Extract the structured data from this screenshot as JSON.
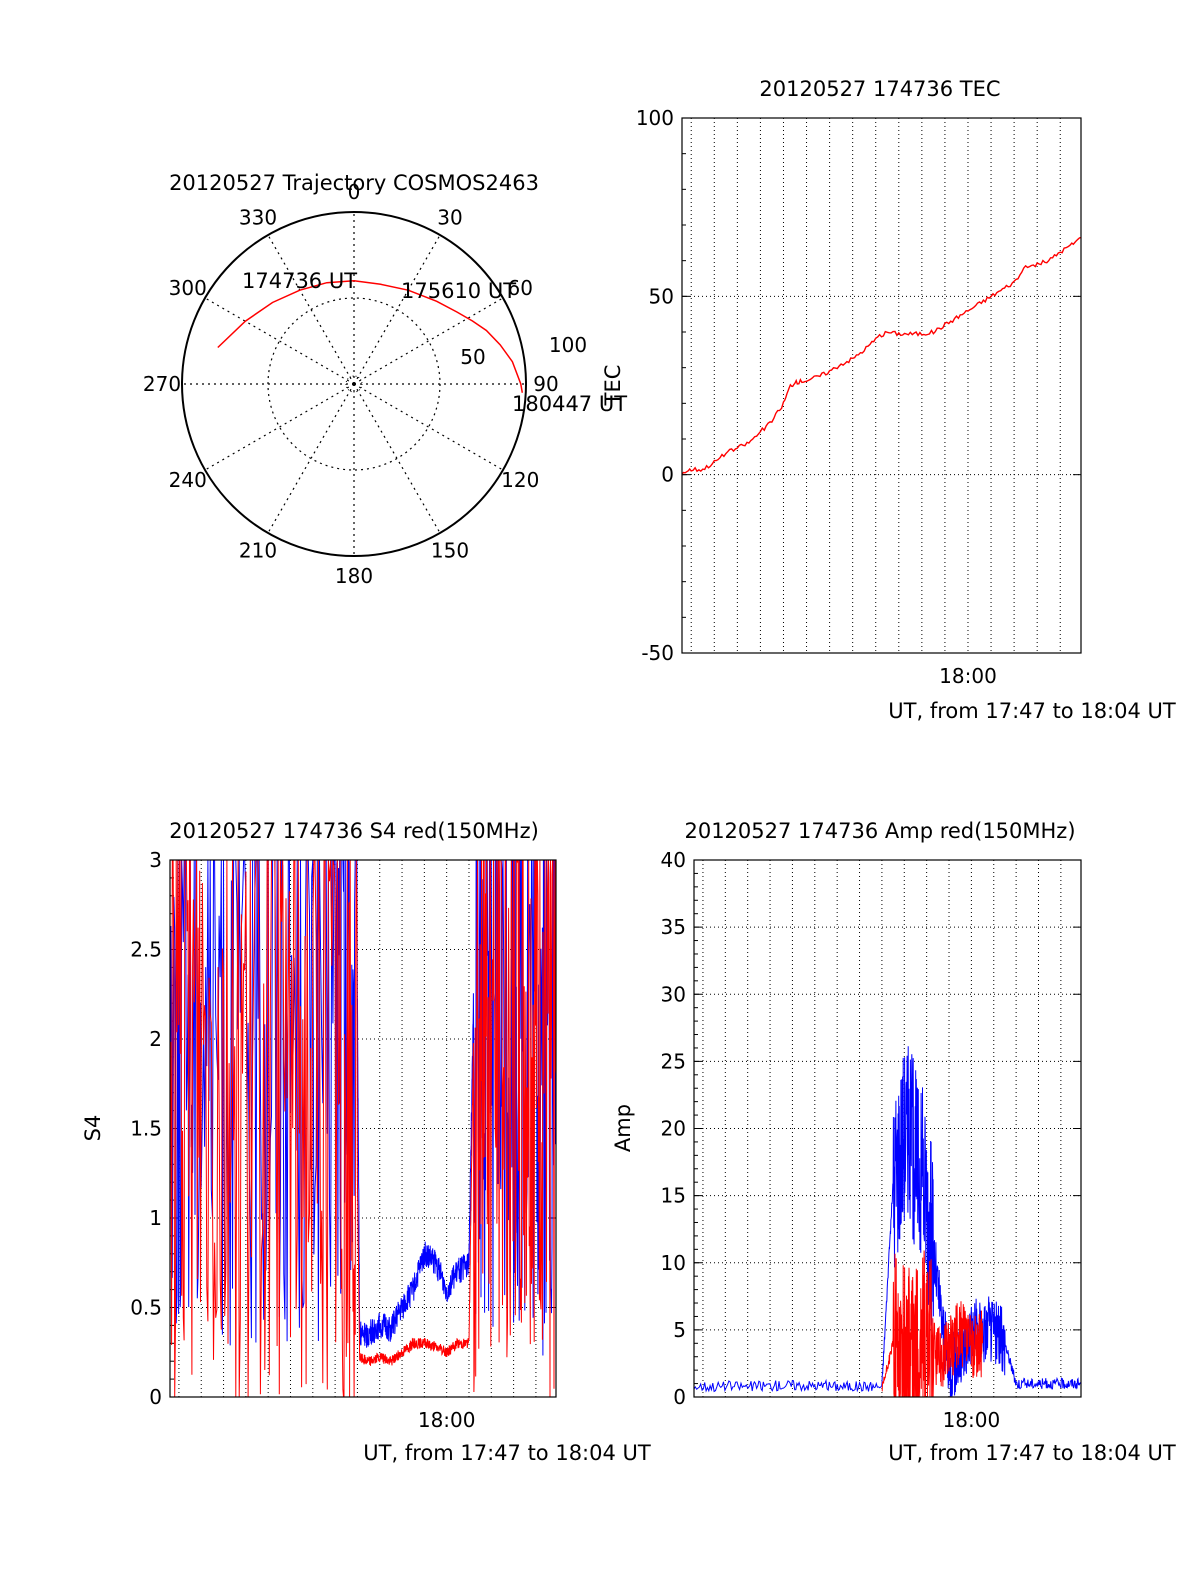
{
  "colors": {
    "primary": "#ff0000",
    "secondary": "#0000ff",
    "grid": "#000000",
    "background": "#ffffff"
  },
  "chart_data": [
    {
      "type": "polar",
      "title": "20120527 Trajectory COSMOS2463",
      "angle_ticks": [
        "0",
        "30",
        "60",
        "90",
        "120",
        "150",
        "180",
        "210",
        "240",
        "270",
        "300",
        "330"
      ],
      "radial_ticks": [
        "50",
        "100"
      ],
      "trajectory": {
        "azimuth_deg": [
          285,
          300,
          315,
          330,
          345,
          0,
          15,
          30,
          45,
          55,
          62,
          68,
          75,
          82,
          90,
          93
        ],
        "zenith_deg": [
          82,
          73,
          67,
          63,
          61,
          60,
          60,
          63,
          68,
          73,
          78,
          83,
          88,
          93,
          97,
          98
        ]
      },
      "annotations": [
        "174736 UT",
        "175610 UT",
        "180447 UT"
      ]
    },
    {
      "type": "line",
      "title": "20120527 174736 TEC",
      "xlabel": "UT, from 17:47 to 18:04 UT",
      "ylabel": "TEC",
      "ylim": [
        -50,
        100
      ],
      "yticks": [
        "-50",
        "0",
        "50",
        "100"
      ],
      "xlim_minutes": [
        17.6,
        34.9
      ],
      "xticks": [
        {
          "minute": 30,
          "label": "18:00"
        }
      ],
      "series": [
        {
          "color": "#ff0000",
          "x": [
            17.6,
            18.0,
            18.5,
            19.0,
            19.5,
            20.0,
            20.5,
            21.0,
            21.5,
            22.0,
            22.3,
            22.6,
            23.0,
            23.5,
            24.0,
            24.5,
            25.0,
            25.5,
            26.0,
            26.5,
            27.0,
            27.5,
            28.0,
            28.5,
            29.0,
            29.5,
            30.0,
            30.5,
            31.0,
            31.5,
            32.0,
            32.5,
            33.0,
            33.5,
            34.0,
            34.5,
            34.9
          ],
          "y": [
            0.5,
            1.5,
            1.5,
            3.5,
            6,
            7.5,
            9,
            12,
            15,
            20,
            25,
            26,
            26.5,
            27.5,
            29,
            31,
            32.5,
            35,
            38,
            40,
            39.5,
            39.5,
            39.5,
            40,
            42,
            44,
            46,
            48,
            50,
            52,
            54,
            58,
            59,
            60,
            62.5,
            64.5,
            66.5
          ]
        }
      ]
    },
    {
      "type": "line",
      "title": "20120527 174736 S4 red(150MHz)",
      "xlabel": "UT, from 17:47 to 18:04 UT",
      "ylabel": "S4",
      "ylim": [
        0,
        3
      ],
      "yticks": [
        "0",
        "0.5",
        "1",
        "1.5",
        "2",
        "2.5",
        "3"
      ],
      "xlim_minutes": [
        17.6,
        34.9
      ],
      "xticks": [
        {
          "minute": 30,
          "label": "18:00"
        }
      ],
      "series": [
        {
          "color": "#0000ff",
          "x": [
            17.6,
            19.0,
            21.0,
            23.0,
            25.0,
            26.0,
            26.1,
            26.5,
            27.0,
            27.5,
            28.0,
            28.5,
            29.0,
            29.5,
            30.0,
            30.5,
            31.0,
            31.2,
            32.0,
            33.0,
            34.0,
            34.9
          ],
          "y": [
            2.2,
            2.3,
            2.1,
            2.3,
            2.2,
            2.2,
            0.35,
            0.35,
            0.4,
            0.38,
            0.5,
            0.6,
            0.8,
            0.75,
            0.6,
            0.7,
            0.75,
            2.2,
            2.3,
            2.2,
            2.1,
            2.0
          ]
        },
        {
          "color": "#ff0000",
          "x": [
            17.6,
            19.0,
            21.0,
            23.0,
            25.0,
            26.0,
            26.1,
            26.5,
            27.0,
            27.5,
            28.0,
            28.5,
            29.0,
            29.5,
            30.0,
            30.5,
            31.0,
            31.2,
            32.0,
            33.0,
            34.0,
            34.9
          ],
          "y": [
            1.9,
            2.0,
            1.8,
            2.0,
            1.8,
            1.2,
            0.22,
            0.2,
            0.22,
            0.2,
            0.25,
            0.3,
            0.3,
            0.28,
            0.25,
            0.3,
            0.3,
            2.0,
            2.2,
            2.1,
            2.0,
            1.8
          ]
        }
      ]
    },
    {
      "type": "line",
      "title": "20120527 174736 Amp red(150MHz)",
      "xlabel": "UT, from 17:47 to 18:04 UT",
      "ylabel": "Amp",
      "ylim": [
        0,
        40
      ],
      "yticks": [
        "0",
        "5",
        "10",
        "15",
        "20",
        "25",
        "30",
        "35",
        "40"
      ],
      "xlim_minutes": [
        17.6,
        34.9
      ],
      "xticks": [
        {
          "minute": 30,
          "label": "18:00"
        }
      ],
      "series": [
        {
          "color": "#0000ff",
          "x": [
            17.6,
            20.0,
            22.0,
            24.0,
            26.0,
            26.5,
            27.0,
            27.5,
            28.0,
            28.5,
            29.0,
            29.5,
            30.0,
            30.5,
            31.0,
            31.5,
            32.0,
            33.0,
            34.0,
            34.9
          ],
          "y": [
            0.8,
            0.8,
            0.9,
            0.8,
            0.8,
            16,
            20,
            18,
            15,
            8,
            2,
            3,
            5,
            5,
            5,
            4,
            1,
            1,
            1,
            1
          ]
        },
        {
          "color": "#ff0000",
          "x": [
            26.0,
            26.5,
            27.0,
            27.5,
            28.0,
            28.5,
            29.0,
            29.5,
            30.0,
            30.5
          ],
          "y": [
            0.5,
            4,
            3,
            2.5,
            4.5,
            3,
            3.5,
            5,
            3.5,
            4
          ]
        }
      ]
    }
  ]
}
